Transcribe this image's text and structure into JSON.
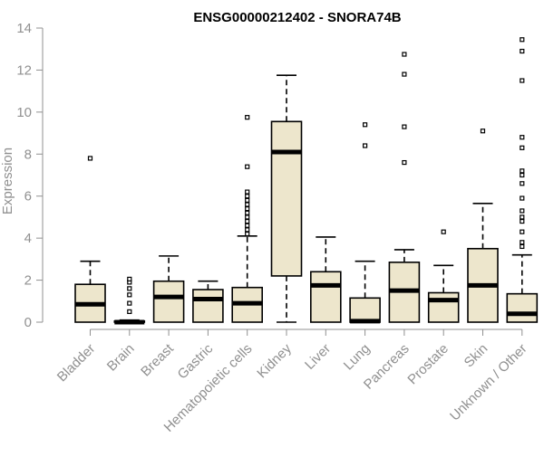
{
  "chart_data": {
    "type": "boxplot",
    "title": "ENSG00000212402 - SNORA74B",
    "xlabel": "",
    "ylabel": "Expression",
    "ylim": [
      0,
      14
    ],
    "yticks": [
      0,
      2,
      4,
      6,
      8,
      10,
      12,
      14
    ],
    "categories": [
      "Bladder",
      "Brain",
      "Breast",
      "Gastric",
      "Hematopoietic cells",
      "Kidney",
      "Liver",
      "Lung",
      "Pancreas",
      "Prostate",
      "Skin",
      "Unknown / Other"
    ],
    "boxes": [
      {
        "name": "Bladder",
        "whisker_low": 0,
        "q1": 0,
        "median": 0.85,
        "q3": 1.8,
        "whisker_high": 2.9,
        "outliers": [
          7.8
        ]
      },
      {
        "name": "Brain",
        "whisker_low": 0,
        "q1": 0,
        "median": 0,
        "q3": 0.05,
        "whisker_high": 0.1,
        "outliers": [
          0.5,
          0.9,
          1.3,
          1.6,
          1.9,
          2.05
        ]
      },
      {
        "name": "Breast",
        "whisker_low": 0,
        "q1": 0,
        "median": 1.2,
        "q3": 1.95,
        "whisker_high": 3.15,
        "outliers": []
      },
      {
        "name": "Gastric",
        "whisker_low": 0,
        "q1": 0,
        "median": 1.1,
        "q3": 1.55,
        "whisker_high": 1.95,
        "outliers": []
      },
      {
        "name": "Hematopoietic cells",
        "whisker_low": 0,
        "q1": 0,
        "median": 0.9,
        "q3": 1.65,
        "whisker_high": 4.1,
        "outliers": [
          4.2,
          4.4,
          4.6,
          4.8,
          5.0,
          5.2,
          5.4,
          5.6,
          5.8,
          6.0,
          6.2,
          7.4,
          9.75
        ]
      },
      {
        "name": "Kidney",
        "whisker_low": 0,
        "q1": 2.2,
        "median": 8.1,
        "q3": 9.55,
        "whisker_high": 11.75,
        "outliers": []
      },
      {
        "name": "Liver",
        "whisker_low": 0,
        "q1": 0,
        "median": 1.75,
        "q3": 2.4,
        "whisker_high": 4.05,
        "outliers": []
      },
      {
        "name": "Lung",
        "whisker_low": 0,
        "q1": 0,
        "median": 0.05,
        "q3": 1.15,
        "whisker_high": 2.9,
        "outliers": [
          8.4,
          9.4
        ]
      },
      {
        "name": "Pancreas",
        "whisker_low": 0,
        "q1": 0,
        "median": 1.5,
        "q3": 2.85,
        "whisker_high": 3.45,
        "outliers": [
          7.6,
          9.3,
          11.8,
          12.75
        ]
      },
      {
        "name": "Prostate",
        "whisker_low": 0,
        "q1": 0,
        "median": 1.05,
        "q3": 1.4,
        "whisker_high": 2.7,
        "outliers": [
          4.3
        ]
      },
      {
        "name": "Skin",
        "whisker_low": 0,
        "q1": 0,
        "median": 1.75,
        "q3": 3.5,
        "whisker_high": 5.65,
        "outliers": [
          9.1
        ]
      },
      {
        "name": "Unknown / Other",
        "whisker_low": 0,
        "q1": 0,
        "median": 0.4,
        "q3": 1.35,
        "whisker_high": 3.2,
        "outliers": [
          3.6,
          3.8,
          4.3,
          4.8,
          5.0,
          5.3,
          5.9,
          6.6,
          7.0,
          7.2,
          8.3,
          8.8,
          11.5,
          12.9,
          13.45
        ]
      }
    ],
    "colors": {
      "box_fill": "#ede6cc",
      "box_stroke": "#000000",
      "median": "#000000",
      "axis": "#909090",
      "text_muted": "#909090",
      "title": "#000000"
    }
  }
}
